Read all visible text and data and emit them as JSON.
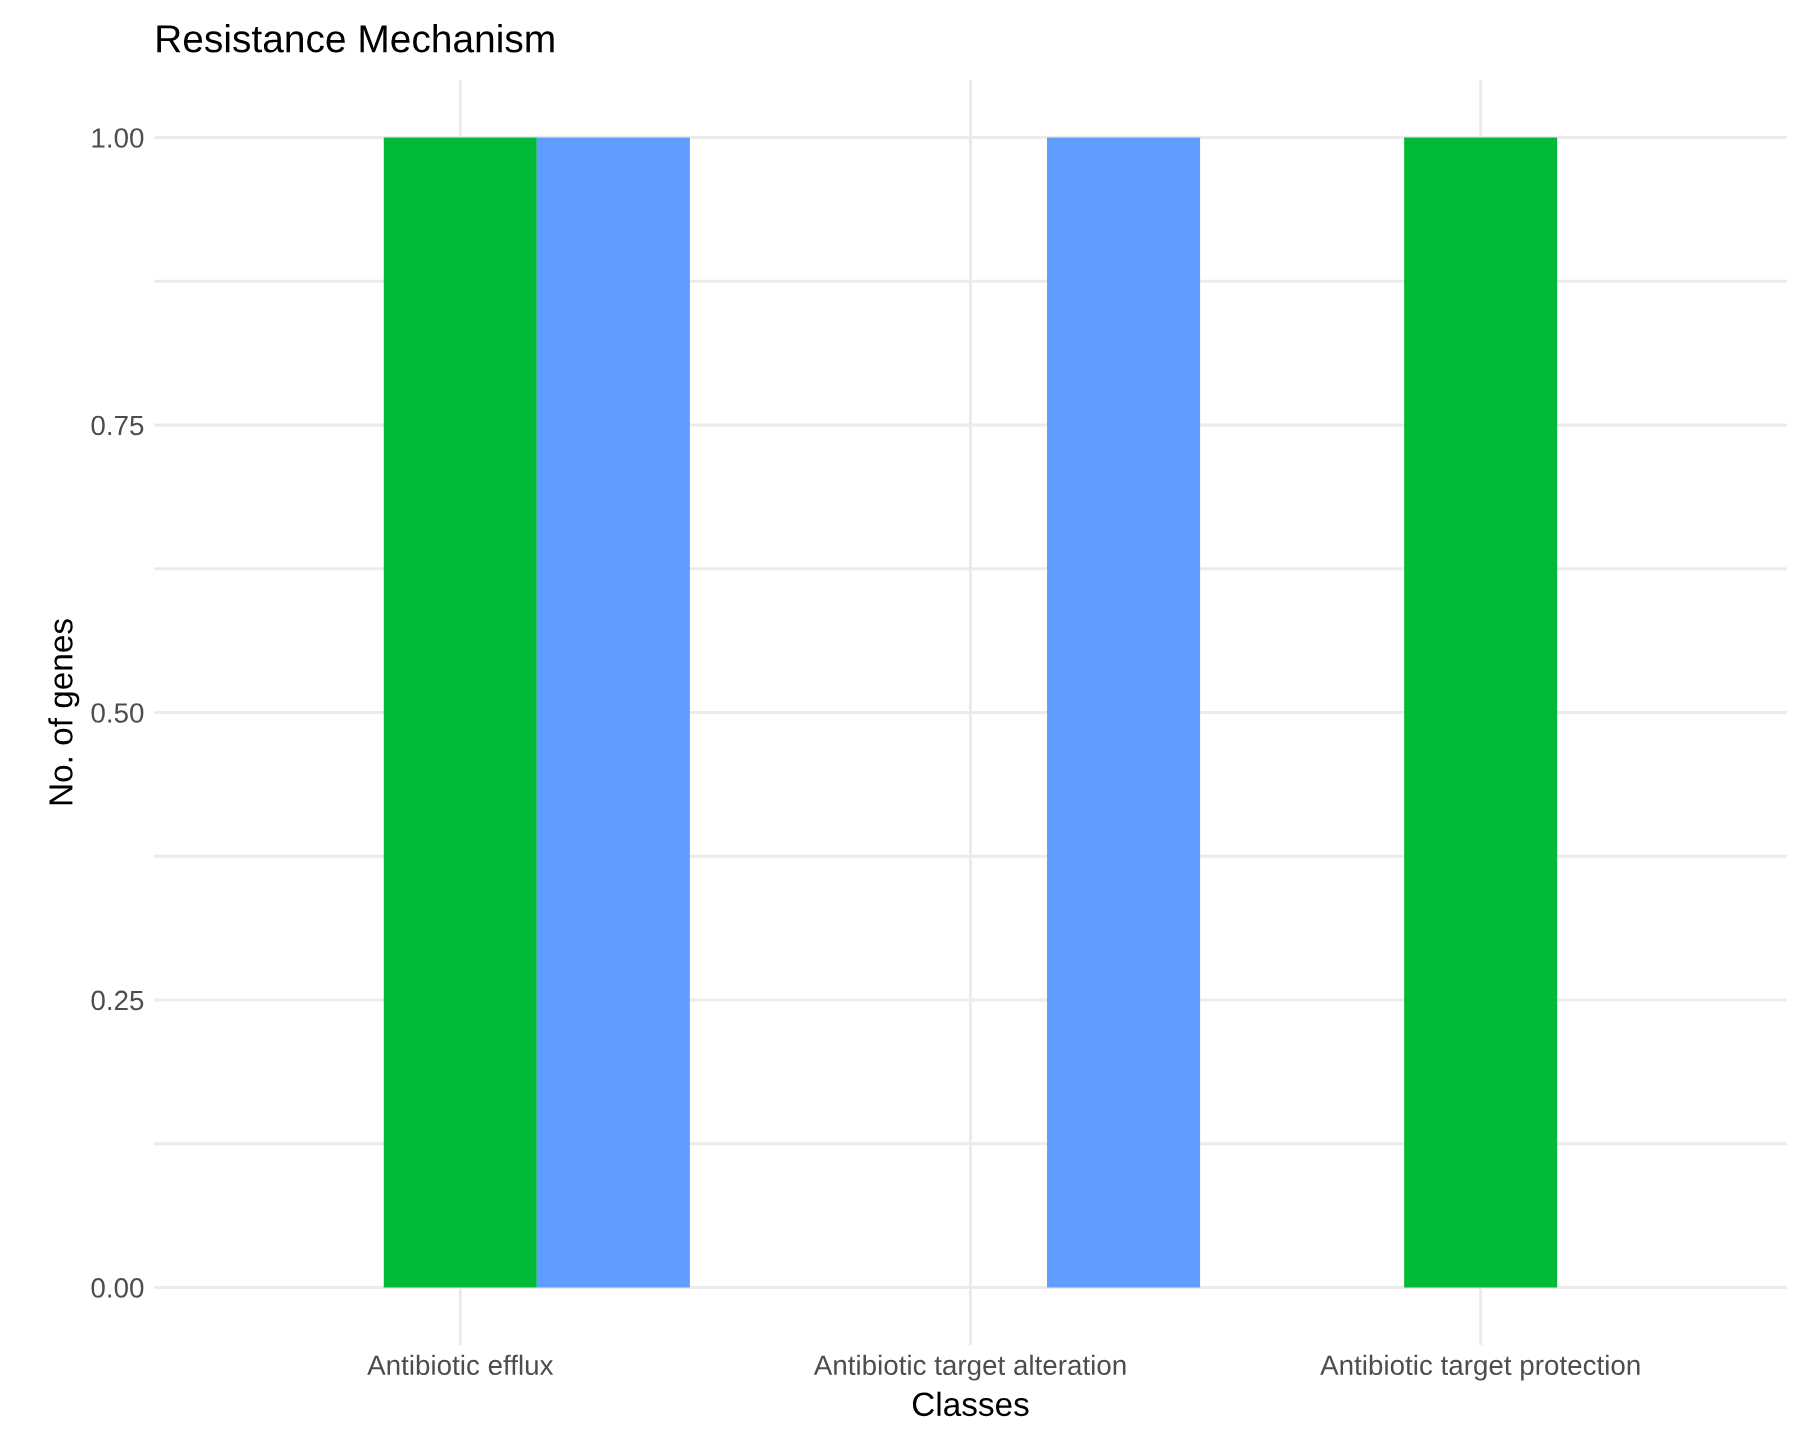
{
  "chart_data": {
    "type": "bar",
    "title": "Resistance Mechanism",
    "xlabel": "Classes",
    "ylabel": "No. of genes",
    "categories": [
      "Antibiotic efflux",
      "Antibiotic target alteration",
      "Antibiotic target protection"
    ],
    "series": [
      {
        "color": "#f8766d",
        "values": [
          0,
          0,
          0
        ]
      },
      {
        "color": "#00ba38",
        "values": [
          1,
          0,
          1
        ]
      },
      {
        "color": "#619cff",
        "values": [
          1,
          1,
          0
        ]
      }
    ],
    "ylim": [
      -0.05,
      1.05
    ],
    "yticks": [
      {
        "value": 0,
        "label": "0.00"
      },
      {
        "value": 0.125,
        "label": null
      },
      {
        "value": 0.25,
        "label": "0.25"
      },
      {
        "value": 0.375,
        "label": null
      },
      {
        "value": 0.5,
        "label": "0.50"
      },
      {
        "value": 0.625,
        "label": null
      },
      {
        "value": 0.75,
        "label": "0.75"
      },
      {
        "value": 0.875,
        "label": null
      },
      {
        "value": 1,
        "label": "1.00"
      }
    ],
    "grid": true,
    "legend": false
  }
}
